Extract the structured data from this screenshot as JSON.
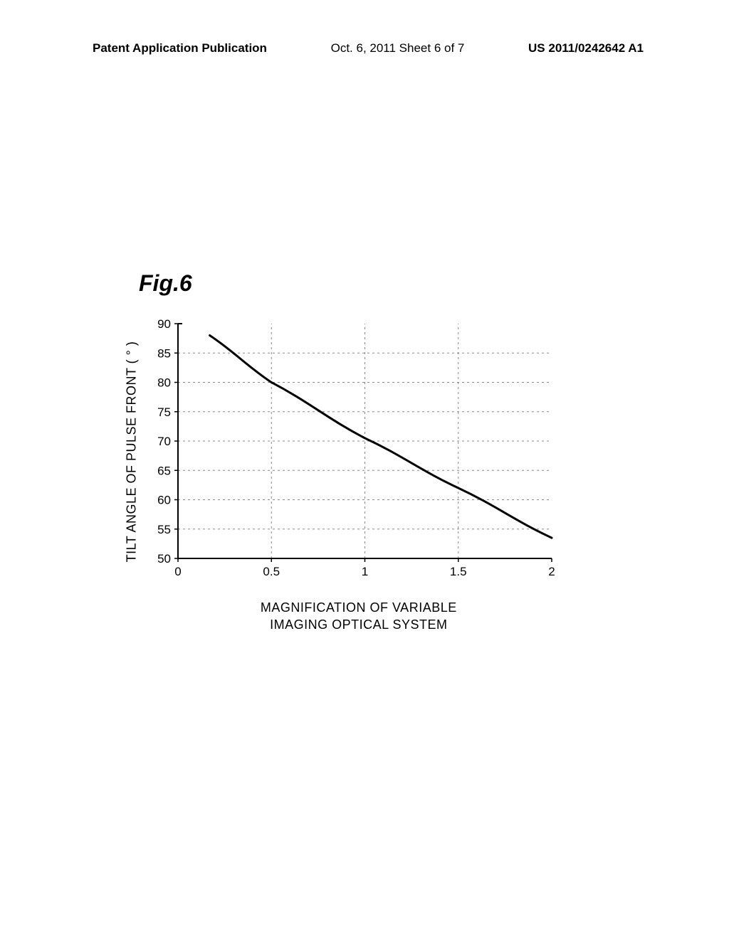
{
  "header": {
    "left": "Patent Application Publication",
    "center": "Oct. 6, 2011  Sheet 6 of 7",
    "right": "US 2011/0242642 A1"
  },
  "figure_label": "Fig.6",
  "chart": {
    "type": "line",
    "xlabel_line1": "MAGNIFICATION OF VARIABLE",
    "xlabel_line2": "IMAGING OPTICAL SYSTEM",
    "ylabel": "TILT ANGLE OF PULSE FRONT ( ° )",
    "xlim": [
      0,
      2
    ],
    "ylim": [
      50,
      90
    ],
    "xticks": [
      0,
      0.5,
      1,
      1.5,
      2
    ],
    "yticks": [
      50,
      55,
      60,
      65,
      70,
      75,
      80,
      85,
      90
    ],
    "grid_color": "#888888",
    "axis_color": "#000000",
    "line_color": "#000000",
    "line_width": 3,
    "background_color": "#ffffff",
    "tick_fontsize": 17,
    "label_fontsize": 18,
    "data_points": [
      {
        "x": 0.17,
        "y": 88
      },
      {
        "x": 0.5,
        "y": 80
      },
      {
        "x": 1.0,
        "y": 70.5
      },
      {
        "x": 1.5,
        "y": 62
      },
      {
        "x": 2.0,
        "y": 53.5
      }
    ]
  }
}
